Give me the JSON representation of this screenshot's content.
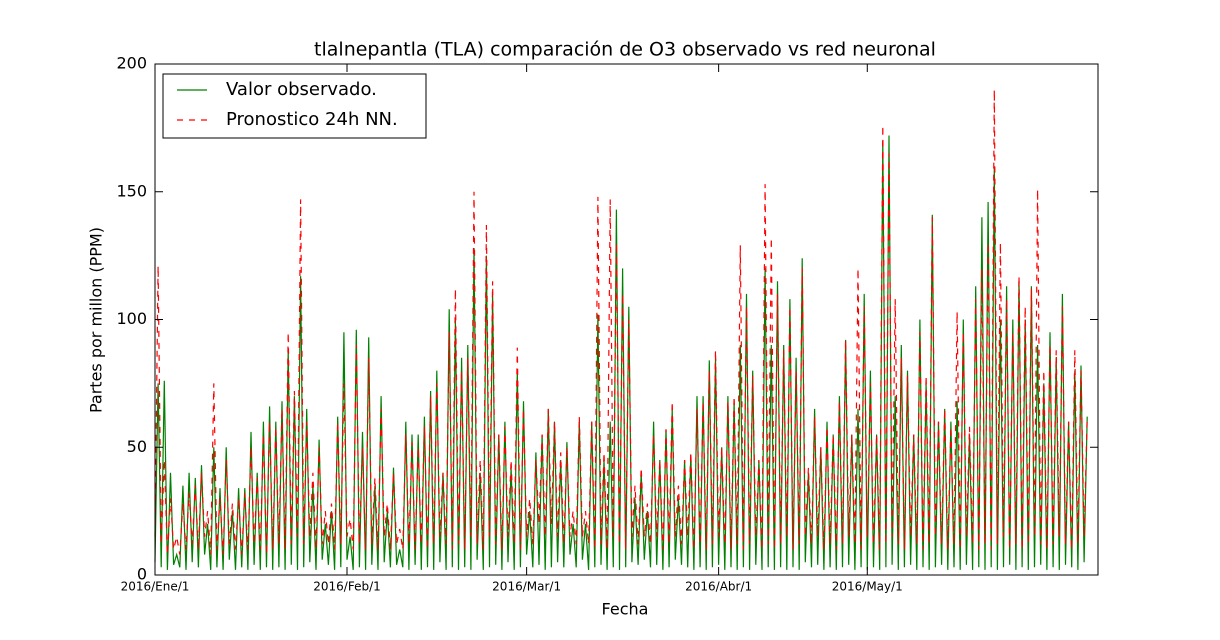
{
  "chart_data": {
    "type": "line",
    "title": "tlalnepantla (TLA) comparación de O3 observado vs red neuronal",
    "xlabel": "Fecha",
    "ylabel": "Partes por millon (PPM)",
    "xlim": [
      0,
      3654
    ],
    "ylim": [
      0,
      200
    ],
    "yticks": [
      0,
      50,
      100,
      150,
      200
    ],
    "xticks": [
      {
        "value": 0,
        "label": "2016/Ene/1"
      },
      {
        "value": 744,
        "label": "2016/Feb/1"
      },
      {
        "value": 1440,
        "label": "2016/Mar/1"
      },
      {
        "value": 2184,
        "label": "2016/Abr/1"
      },
      {
        "value": 2760,
        "label": "2016/May/1"
      }
    ],
    "legend": "upper left",
    "x": [
      0,
      12,
      24,
      36,
      48,
      60,
      72,
      84,
      96,
      108,
      120,
      132,
      144,
      156,
      168,
      180,
      192,
      204,
      216,
      228,
      240,
      252,
      264,
      276,
      288,
      300,
      312,
      324,
      336,
      348,
      360,
      372,
      384,
      396,
      408,
      420,
      432,
      444,
      456,
      468,
      480,
      492,
      504,
      516,
      528,
      540,
      552,
      564,
      576,
      588,
      600,
      612,
      624,
      636,
      648,
      660,
      672,
      684,
      696,
      708,
      720,
      732,
      744,
      756,
      768,
      780,
      792,
      804,
      816,
      828,
      840,
      852,
      864,
      876,
      888,
      900,
      912,
      924,
      936,
      948,
      960,
      972,
      984,
      996,
      1008,
      1020,
      1032,
      1044,
      1056,
      1068,
      1080,
      1092,
      1104,
      1116,
      1128,
      1140,
      1152,
      1164,
      1176,
      1188,
      1200,
      1212,
      1224,
      1236,
      1248,
      1260,
      1272,
      1284,
      1296,
      1308,
      1320,
      1332,
      1344,
      1356,
      1368,
      1380,
      1392,
      1404,
      1416,
      1428,
      1440,
      1452,
      1464,
      1476,
      1488,
      1500,
      1512,
      1524,
      1536,
      1548,
      1560,
      1572,
      1584,
      1596,
      1608,
      1620,
      1632,
      1644,
      1656,
      1668,
      1680,
      1692,
      1704,
      1716,
      1728,
      1740,
      1752,
      1764,
      1776,
      1788,
      1800,
      1812,
      1824,
      1836,
      1848,
      1860,
      1872,
      1884,
      1896,
      1908,
      1920,
      1932,
      1944,
      1956,
      1968,
      1980,
      1992,
      2004,
      2016,
      2028,
      2040,
      2052,
      2064,
      2076,
      2088,
      2100,
      2112,
      2124,
      2136,
      2148,
      2160,
      2172,
      2184,
      2196,
      2208,
      2220,
      2232,
      2244,
      2256,
      2268,
      2280,
      2292,
      2304,
      2316,
      2328,
      2340,
      2352,
      2364,
      2376,
      2388,
      2400,
      2412,
      2424,
      2436,
      2448,
      2460,
      2472,
      2484,
      2496,
      2508,
      2520,
      2532,
      2544,
      2556,
      2568,
      2580,
      2592,
      2604,
      2616,
      2628,
      2640,
      2652,
      2664,
      2676,
      2688,
      2700,
      2712,
      2724,
      2736,
      2748,
      2760,
      2772,
      2784,
      2796,
      2808,
      2820,
      2832,
      2844,
      2856,
      2868,
      2880,
      2892,
      2904,
      2916,
      2928,
      2940,
      2952,
      2964,
      2976,
      2988,
      3000,
      3012,
      3024,
      3036,
      3048,
      3060,
      3072,
      3084,
      3096,
      3108,
      3120,
      3132,
      3144,
      3156,
      3168,
      3180,
      3192,
      3204,
      3216,
      3228,
      3240,
      3252,
      3264,
      3276,
      3288,
      3300,
      3312,
      3324,
      3336,
      3348,
      3360,
      3372,
      3384,
      3396,
      3408,
      3420,
      3432,
      3444,
      3456,
      3468,
      3480,
      3492,
      3504,
      3516,
      3528,
      3540,
      3552,
      3564,
      3576,
      3588,
      3600,
      3612
    ],
    "series": [
      {
        "name": "Valor observado.",
        "color": "#008000",
        "linestyle": "solid",
        "values": [
          5,
          75,
          3,
          76,
          2,
          40,
          4,
          8,
          3,
          35,
          2,
          40,
          5,
          38,
          3,
          43,
          8,
          20,
          2,
          50,
          3,
          34,
          2,
          50,
          6,
          25,
          2,
          34,
          3,
          34,
          2,
          56,
          4,
          40,
          2,
          60,
          3,
          66,
          2,
          60,
          3,
          68,
          2,
          88,
          4,
          70,
          2,
          117,
          3,
          65,
          5,
          35,
          2,
          53,
          6,
          20,
          4,
          25,
          2,
          62,
          3,
          95,
          6,
          15,
          2,
          96,
          3,
          56,
          2,
          93,
          4,
          35,
          2,
          70,
          5,
          25,
          3,
          42,
          4,
          10,
          3,
          60,
          2,
          55,
          4,
          55,
          2,
          62,
          3,
          72,
          2,
          80,
          5,
          40,
          2,
          104,
          3,
          100,
          2,
          85,
          3,
          90,
          2,
          128,
          6,
          40,
          2,
          125,
          3,
          110,
          4,
          55,
          2,
          60,
          5,
          42,
          2,
          80,
          3,
          68,
          8,
          25,
          3,
          48,
          4,
          55,
          2,
          65,
          3,
          60,
          5,
          45,
          3,
          52,
          8,
          20,
          3,
          60,
          6,
          20,
          2,
          60,
          3,
          102,
          4,
          45,
          2,
          60,
          3,
          143,
          2,
          120,
          3,
          105,
          5,
          30,
          4,
          40,
          6,
          25,
          3,
          60,
          4,
          45,
          2,
          57,
          3,
          65,
          6,
          30,
          4,
          45,
          3,
          47,
          2,
          70,
          3,
          70,
          2,
          84,
          3,
          85,
          4,
          50,
          2,
          70,
          3,
          68,
          2,
          90,
          3,
          110,
          2,
          80,
          4,
          45,
          2,
          120,
          3,
          90,
          2,
          115,
          3,
          90,
          2,
          108,
          3,
          85,
          2,
          124,
          5,
          40,
          3,
          65,
          4,
          50,
          2,
          60,
          3,
          55,
          2,
          70,
          3,
          92,
          4,
          55,
          2,
          65,
          3,
          110,
          2,
          80,
          3,
          55,
          2,
          170,
          3,
          172,
          4,
          70,
          2,
          90,
          3,
          80,
          4,
          55,
          2,
          100,
          3,
          75,
          2,
          141,
          3,
          60,
          4,
          65,
          2,
          60,
          3,
          68,
          2,
          100,
          4,
          55,
          2,
          113,
          3,
          140,
          2,
          146,
          3,
          160,
          2,
          100,
          3,
          113,
          4,
          100,
          2,
          115,
          3,
          100,
          2,
          113,
          3,
          90,
          4,
          75,
          2,
          95,
          3,
          85,
          2,
          110,
          4,
          60,
          3,
          80,
          2,
          82,
          5,
          62
        ]
      },
      {
        "name": "Pronostico 24h NN.",
        "color": "#ff0000",
        "linestyle": "dashed",
        "values": [
          15,
          121,
          12,
          45,
          8,
          30,
          10,
          15,
          8,
          28,
          10,
          32,
          12,
          35,
          10,
          40,
          15,
          25,
          8,
          75,
          10,
          30,
          8,
          45,
          12,
          28,
          10,
          30,
          8,
          32,
          10,
          50,
          12,
          38,
          10,
          55,
          8,
          60,
          10,
          58,
          12,
          65,
          10,
          95,
          12,
          72,
          15,
          147,
          12,
          60,
          15,
          40,
          10,
          50,
          12,
          25,
          12,
          28,
          10,
          60,
          12,
          75,
          15,
          22,
          10,
          90,
          12,
          50,
          10,
          85,
          12,
          38,
          10,
          65,
          15,
          28,
          10,
          40,
          12,
          18,
          10,
          55,
          12,
          52,
          10,
          50,
          12,
          58,
          10,
          70,
          12,
          75,
          15,
          40,
          12,
          95,
          10,
          112,
          12,
          80,
          10,
          85,
          15,
          150,
          12,
          45,
          10,
          137,
          15,
          115,
          12,
          55,
          10,
          58,
          15,
          45,
          12,
          89,
          10,
          65,
          15,
          30,
          12,
          45,
          20,
          55,
          15,
          65,
          20,
          60,
          15,
          48,
          12,
          50,
          15,
          25,
          12,
          62,
          15,
          25,
          12,
          60,
          10,
          148,
          12,
          48,
          10,
          147,
          15,
          130,
          12,
          110,
          10,
          100,
          15,
          35,
          12,
          42,
          15,
          28,
          12,
          55,
          15,
          45,
          10,
          57,
          12,
          68,
          15,
          35,
          12,
          45,
          15,
          48,
          10,
          65,
          12,
          68,
          10,
          80,
          12,
          88,
          15,
          50,
          12,
          68,
          10,
          70,
          12,
          129,
          10,
          105,
          12,
          78,
          15,
          45,
          10,
          153,
          12,
          132,
          10,
          110,
          12,
          88,
          15,
          105,
          10,
          80,
          12,
          120,
          15,
          42,
          12,
          62,
          15,
          50,
          10,
          58,
          12,
          55,
          10,
          68,
          12,
          92,
          15,
          55,
          12,
          120,
          10,
          105,
          15,
          75,
          12,
          55,
          10,
          176,
          12,
          165,
          15,
          108,
          12,
          85,
          10,
          78,
          15,
          55,
          12,
          95,
          10,
          78,
          12,
          140,
          15,
          60,
          12,
          65,
          10,
          58,
          12,
          103,
          10,
          95,
          15,
          58,
          12,
          108,
          10,
          120,
          12,
          130,
          10,
          190,
          12,
          130,
          15,
          108,
          10,
          95,
          12,
          117,
          10,
          105,
          12,
          112,
          15,
          151,
          12,
          80,
          10,
          90,
          12,
          88,
          15,
          105,
          12,
          60,
          10,
          88,
          12,
          80,
          15,
          62
        ]
      }
    ]
  }
}
